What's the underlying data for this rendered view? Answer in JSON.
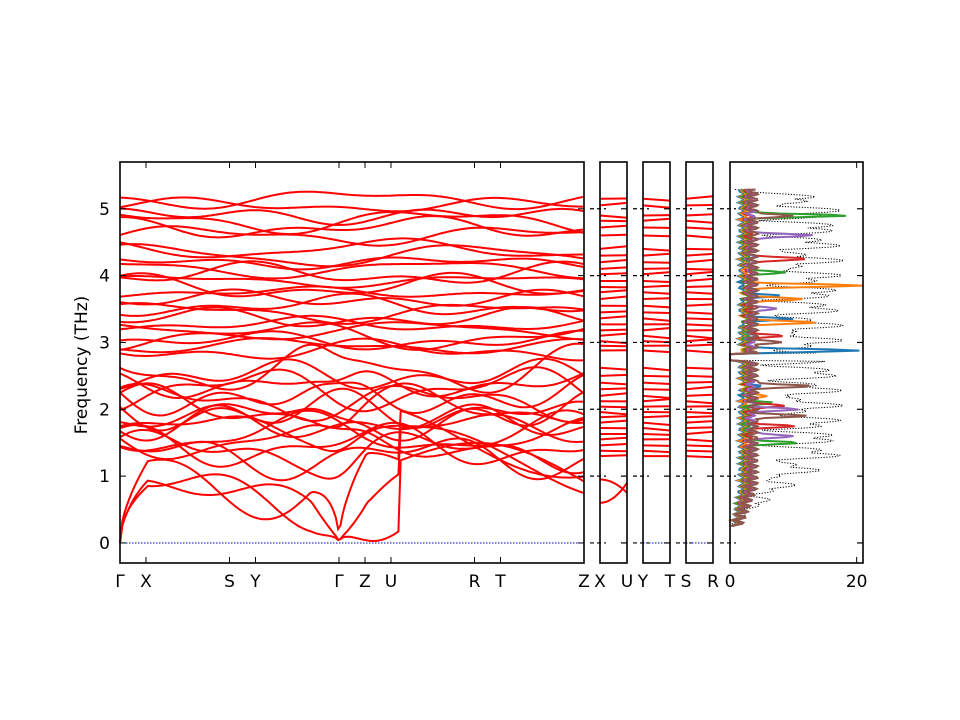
{
  "chart_data": [
    {
      "type": "line",
      "name": "band-structure",
      "ylabel": "Frequency (THz)",
      "ylim": [
        -0.3,
        5.7
      ],
      "yticks": [
        0,
        1,
        2,
        3,
        4,
        5
      ],
      "grid": false,
      "band_color": "#ff0000",
      "zero_line_color": "#0000cc",
      "segments": [
        {
          "name": "segment-1",
          "path": [
            "Γ",
            "X",
            "S",
            "Y",
            "Γ",
            "Z",
            "U",
            "R",
            "T",
            "Z"
          ],
          "kpos": [
            0,
            0.056,
            0.236,
            0.292,
            0.472,
            0.528,
            0.584,
            0.764,
            0.82,
            1.0
          ]
        },
        {
          "name": "segment-2",
          "path": [
            "X",
            "U"
          ]
        },
        {
          "name": "segment-3",
          "path": [
            "Y",
            "T"
          ]
        },
        {
          "name": "segment-4",
          "path": [
            "S",
            "R"
          ]
        }
      ],
      "tick_labels": [
        "Γ",
        "X",
        "S",
        "Y",
        "Γ",
        "Z",
        "U",
        "R",
        "T",
        "Z",
        "X",
        "U",
        "Y",
        "T",
        "S",
        "R"
      ],
      "upper_band_levels": [
        2.88,
        2.95,
        3.02,
        3.1,
        3.18,
        3.27,
        3.36,
        3.45,
        3.55,
        3.65,
        3.75,
        3.83,
        3.92,
        4.02,
        4.1,
        4.2,
        4.3,
        4.4,
        4.6,
        4.72,
        4.82,
        4.9,
        5.05,
        5.15
      ],
      "lower_band_levels": [
        1.3,
        1.38,
        1.46,
        1.55,
        1.63,
        1.72,
        1.8,
        1.88,
        1.96,
        2.04,
        2.12,
        2.2,
        2.3,
        2.4,
        2.5,
        2.62
      ]
    },
    {
      "type": "line",
      "name": "density-of-states",
      "xlim": [
        0,
        21
      ],
      "xticks": [
        0,
        20
      ],
      "total_color": "#000000",
      "series": [
        {
          "color": "#1f77b4",
          "peaks": [
            [
              2.88,
              19
            ],
            [
              3.35,
              8
            ],
            [
              3.7,
              6
            ],
            [
              2.35,
              3
            ]
          ]
        },
        {
          "color": "#ff7f0e",
          "peaks": [
            [
              3.85,
              19
            ],
            [
              3.3,
              12
            ],
            [
              3.65,
              10
            ],
            [
              2.2,
              4
            ]
          ]
        },
        {
          "color": "#2ca02c",
          "peaks": [
            [
              4.9,
              16
            ],
            [
              1.5,
              8
            ],
            [
              4.05,
              6
            ],
            [
              2.1,
              4
            ]
          ]
        },
        {
          "color": "#d62728",
          "peaks": [
            [
              4.25,
              10
            ],
            [
              1.75,
              7
            ],
            [
              2.05,
              6
            ],
            [
              3.1,
              5
            ]
          ]
        },
        {
          "color": "#9467bd",
          "peaks": [
            [
              4.6,
              10
            ],
            [
              2.0,
              7
            ],
            [
              1.6,
              7
            ],
            [
              3.5,
              4
            ]
          ]
        },
        {
          "color": "#8c564b",
          "peaks": [
            [
              2.35,
              9
            ],
            [
              1.9,
              8
            ],
            [
              4.9,
              6
            ],
            [
              3.0,
              4
            ]
          ]
        }
      ]
    }
  ]
}
